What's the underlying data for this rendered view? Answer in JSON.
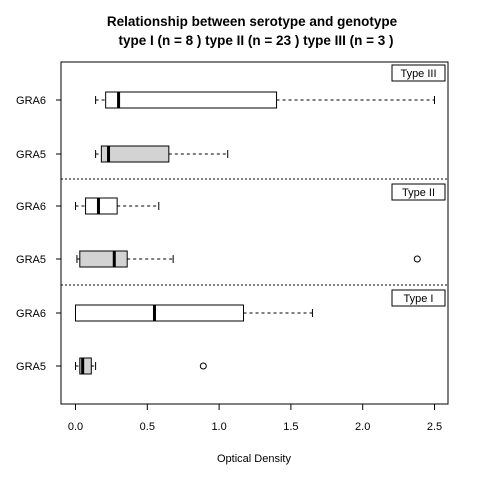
{
  "chart_data": {
    "type": "boxplot",
    "title_line1": "Relationship between serotype and genotype",
    "title_line2": "type I (n = 8 ) type II (n = 23 ) type III (n =  3 )",
    "xlabel": "Optical Density",
    "ylabel": "",
    "xlim": [
      -0.1,
      2.6
    ],
    "x_ticks": [
      "0.0",
      "0.5",
      "1.0",
      "1.5",
      "2.0",
      "2.5"
    ],
    "x_tick_values": [
      0,
      0.5,
      1.0,
      1.5,
      2.0,
      2.5
    ],
    "colors": {
      "GRA5": "#d3d3d3",
      "GRA6": "#ffffff",
      "stroke": "#000000"
    },
    "groups": [
      {
        "panel": "Type III",
        "boxes": [
          {
            "label": "GRA6",
            "min": 0.14,
            "q1": 0.21,
            "median": 0.3,
            "q3": 1.4,
            "max": 2.5,
            "outliers": []
          },
          {
            "label": "GRA5",
            "min": 0.14,
            "q1": 0.18,
            "median": 0.23,
            "q3": 0.65,
            "max": 1.06,
            "outliers": []
          }
        ]
      },
      {
        "panel": "Type II",
        "boxes": [
          {
            "label": "GRA6",
            "min": 0.0,
            "q1": 0.07,
            "median": 0.16,
            "q3": 0.29,
            "max": 0.58,
            "outliers": []
          },
          {
            "label": "GRA5",
            "min": 0.01,
            "q1": 0.03,
            "median": 0.27,
            "q3": 0.36,
            "max": 0.68,
            "outliers": [
              2.38
            ]
          }
        ]
      },
      {
        "panel": "Type I",
        "boxes": [
          {
            "label": "GRA6",
            "min": 0.0,
            "q1": 0.0,
            "median": 0.55,
            "q3": 1.17,
            "max": 1.65,
            "outliers": []
          },
          {
            "label": "GRA5",
            "min": 0.0,
            "q1": 0.03,
            "median": 0.05,
            "q3": 0.11,
            "max": 0.14,
            "outliers": [
              0.89
            ]
          }
        ]
      }
    ]
  }
}
